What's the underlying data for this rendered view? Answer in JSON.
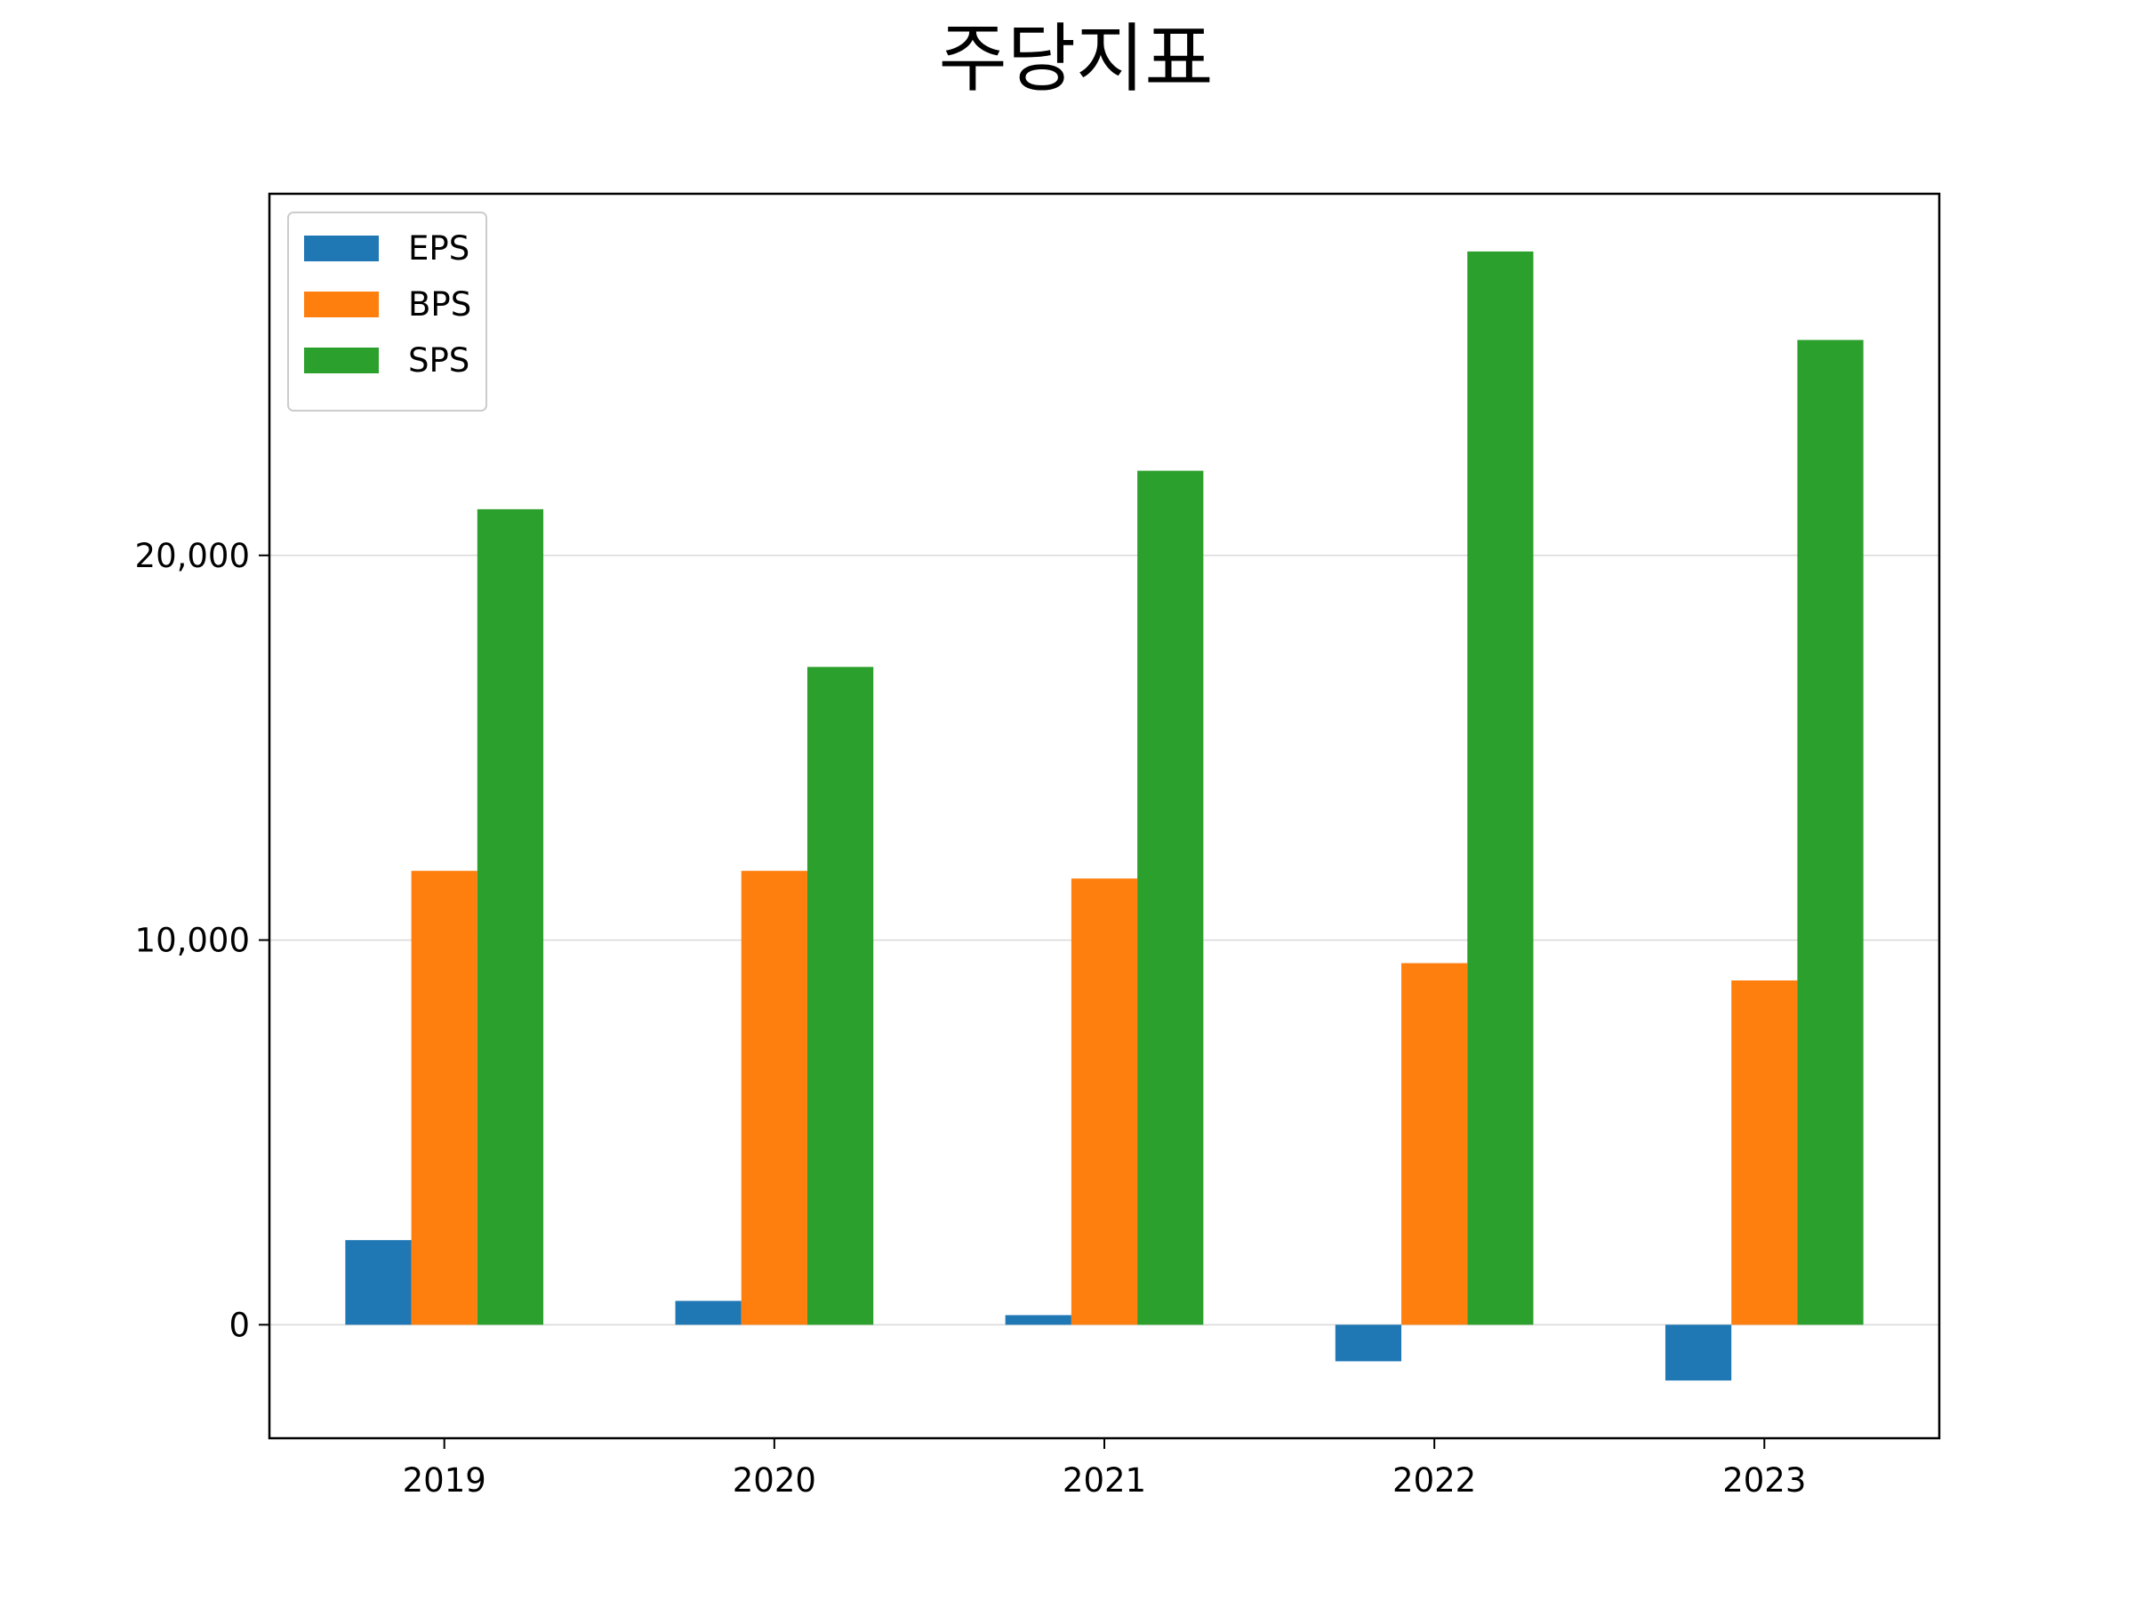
{
  "chart_data": {
    "type": "bar",
    "title": "주당지표",
    "xlabel": "",
    "ylabel": "",
    "categories": [
      "2019",
      "2020",
      "2021",
      "2022",
      "2023"
    ],
    "series": [
      {
        "name": "EPS",
        "color": "#1f77b4",
        "values": [
          2200,
          620,
          250,
          -950,
          -1450
        ]
      },
      {
        "name": "BPS",
        "color": "#ff7f0e",
        "values": [
          11800,
          11800,
          11600,
          9400,
          8950
        ]
      },
      {
        "name": "SPS",
        "color": "#2ca02c",
        "values": [
          21200,
          17100,
          22200,
          27900,
          25600
        ]
      }
    ],
    "ylim": [
      -2950,
      29400
    ],
    "yticks": [
      0,
      10000,
      20000
    ],
    "ytick_labels": [
      "0",
      "10,000",
      "20,000"
    ],
    "grid": "y",
    "legend": "top-left"
  }
}
